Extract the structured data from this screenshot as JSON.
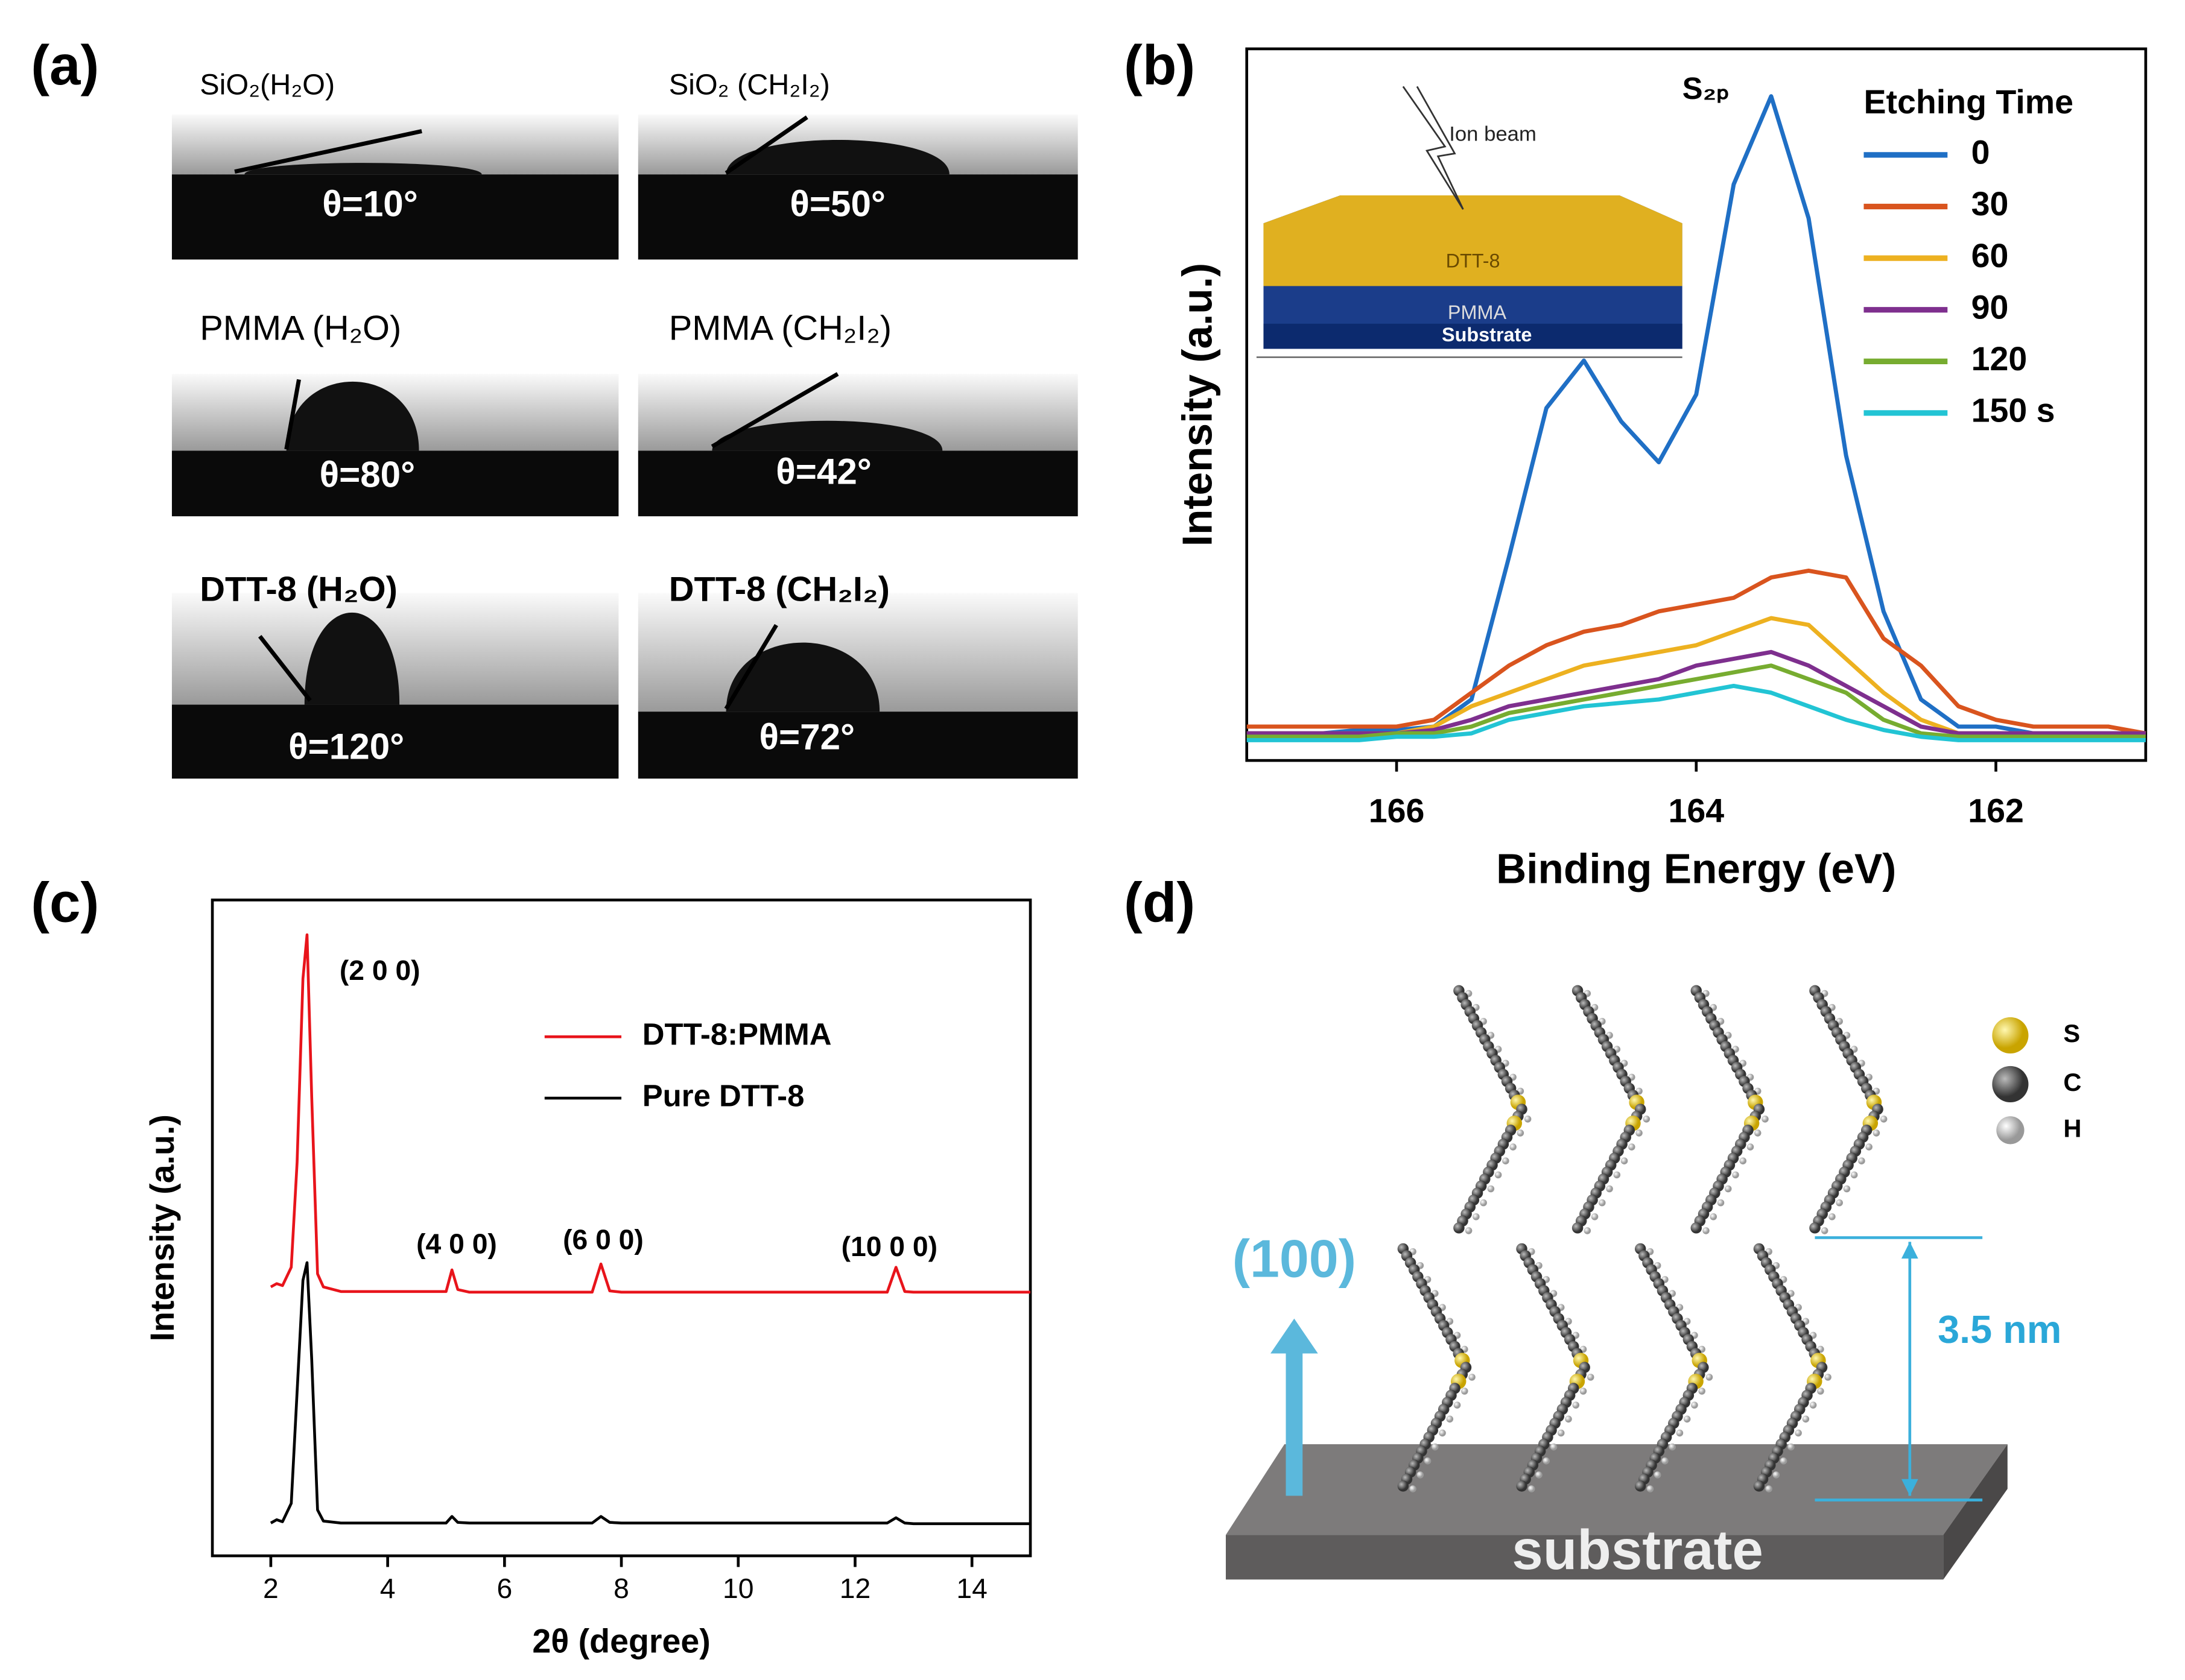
{
  "panel_a": {
    "label": "(a)",
    "images": [
      {
        "title": "SiO₂(H₂O)",
        "angle": "θ=10°"
      },
      {
        "title": "SiO₂ (CH₂I₂)",
        "angle": "θ=50°"
      },
      {
        "title": "PMMA (H₂O)",
        "angle": "θ=80°"
      },
      {
        "title": "PMMA (CH₂I₂)",
        "angle": "θ=42°"
      },
      {
        "title": "DTT-8 (H₂O)",
        "angle": "θ=120°"
      },
      {
        "title": "DTT-8 (CH₂I₂)",
        "angle": "θ=72°"
      }
    ]
  },
  "chart_data": [
    {
      "type": "line",
      "panel_label": "(b)",
      "xlabel": "Binding Energy (eV)",
      "ylabel": "Intensity (a.u.)",
      "annotation": "S₂ₚ",
      "legend_title": "Etching Time",
      "inset_labels": [
        "Ion beam",
        "DTT-8",
        "PMMA",
        "Substrate"
      ],
      "xlim": [
        167,
        161
      ],
      "ylim": [
        0,
        105
      ],
      "xticks": [
        166,
        164,
        162
      ],
      "x": [
        167,
        166.75,
        166.5,
        166.25,
        166,
        165.75,
        165.5,
        165.25,
        165,
        164.75,
        164.5,
        164.25,
        164,
        163.75,
        163.5,
        163.25,
        163,
        162.75,
        162.5,
        162.25,
        162,
        161.75,
        161.5,
        161.25,
        161
      ],
      "series": [
        {
          "name": "0",
          "color": "#1f6fc5",
          "values": [
            4,
            4,
            4,
            4.5,
            4.5,
            5,
            9,
            30,
            52,
            59,
            50,
            44,
            54,
            85,
            98,
            80,
            45,
            22,
            9,
            5,
            5,
            4,
            4,
            4,
            4
          ]
        },
        {
          "name": "30",
          "color": "#d9541e",
          "values": [
            5,
            5,
            5,
            5,
            5,
            6,
            10,
            14,
            17,
            19,
            20,
            22,
            23,
            24,
            27,
            28,
            27,
            18,
            14,
            8,
            6,
            5,
            5,
            5,
            4
          ]
        },
        {
          "name": "60",
          "color": "#edb120",
          "values": [
            4,
            4,
            4,
            4,
            4,
            5,
            8,
            10,
            12,
            14,
            15,
            16,
            17,
            19,
            21,
            20,
            15,
            10,
            6,
            4,
            4,
            4,
            4,
            4,
            4
          ]
        },
        {
          "name": "90",
          "color": "#7e2f8e",
          "values": [
            4,
            4,
            4,
            4,
            4,
            4.5,
            6,
            8,
            9,
            10,
            11,
            12,
            14,
            15,
            16,
            14,
            11,
            8,
            5,
            4,
            4,
            4,
            4,
            4,
            4
          ]
        },
        {
          "name": "120",
          "color": "#77ac30",
          "values": [
            3.5,
            3.5,
            3.5,
            3.5,
            4,
            4,
            5,
            7,
            8,
            9,
            10,
            11,
            12,
            13,
            14,
            12,
            10,
            6,
            4,
            3.5,
            3.5,
            3.5,
            3.5,
            3.5,
            3.5
          ]
        },
        {
          "name": "150 s",
          "color": "#22c4d4",
          "values": [
            3,
            3,
            3,
            3,
            3.5,
            3.5,
            4,
            6,
            7,
            8,
            8.5,
            9,
            10,
            11,
            10,
            8,
            6,
            4.5,
            3.5,
            3,
            3,
            3,
            3,
            3,
            3
          ]
        }
      ]
    },
    {
      "type": "line",
      "panel_label": "(c)",
      "xlabel": "2θ (degree)",
      "ylabel": "Intensity (a.u.)",
      "annotations": [
        "(2 0 0)",
        "(4 0 0)",
        "(6 0 0)",
        "(10 0 0)"
      ],
      "xlim": [
        1,
        15
      ],
      "ylim": [
        0,
        100
      ],
      "xticks": [
        2,
        4,
        6,
        8,
        10,
        12,
        14
      ],
      "x": [
        2,
        2.1,
        2.2,
        2.35,
        2.45,
        2.55,
        2.62,
        2.7,
        2.8,
        2.9,
        3.2,
        5.0,
        5.1,
        5.2,
        5.4,
        7.5,
        7.65,
        7.8,
        8,
        12.55,
        12.7,
        12.85,
        13,
        15
      ],
      "series": [
        {
          "name": "DTT-8:PMMA",
          "color": "#e8141b",
          "values": [
            41,
            41.5,
            41.2,
            44,
            60,
            88,
            94.7,
            70,
            43,
            41,
            40.3,
            40.3,
            43.6,
            40.6,
            40.2,
            40.2,
            44.5,
            40.4,
            40.2,
            40.2,
            44,
            40.3,
            40.2,
            40.2
          ]
        },
        {
          "name": "Pure DTT-8",
          "color": "#000000",
          "values": [
            5,
            5.5,
            5.2,
            8,
            25,
            42,
            44.7,
            30,
            7,
            5.3,
            5,
            5,
            6,
            5.1,
            5,
            5,
            6,
            5.1,
            5,
            5,
            5.8,
            5,
            4.9,
            4.9
          ]
        }
      ]
    }
  ],
  "panel_d": {
    "label": "(d)",
    "direction": "(100)",
    "spacing": "3.5 nm",
    "substrate": "substrate",
    "atoms": [
      "S",
      "C",
      "H"
    ]
  }
}
